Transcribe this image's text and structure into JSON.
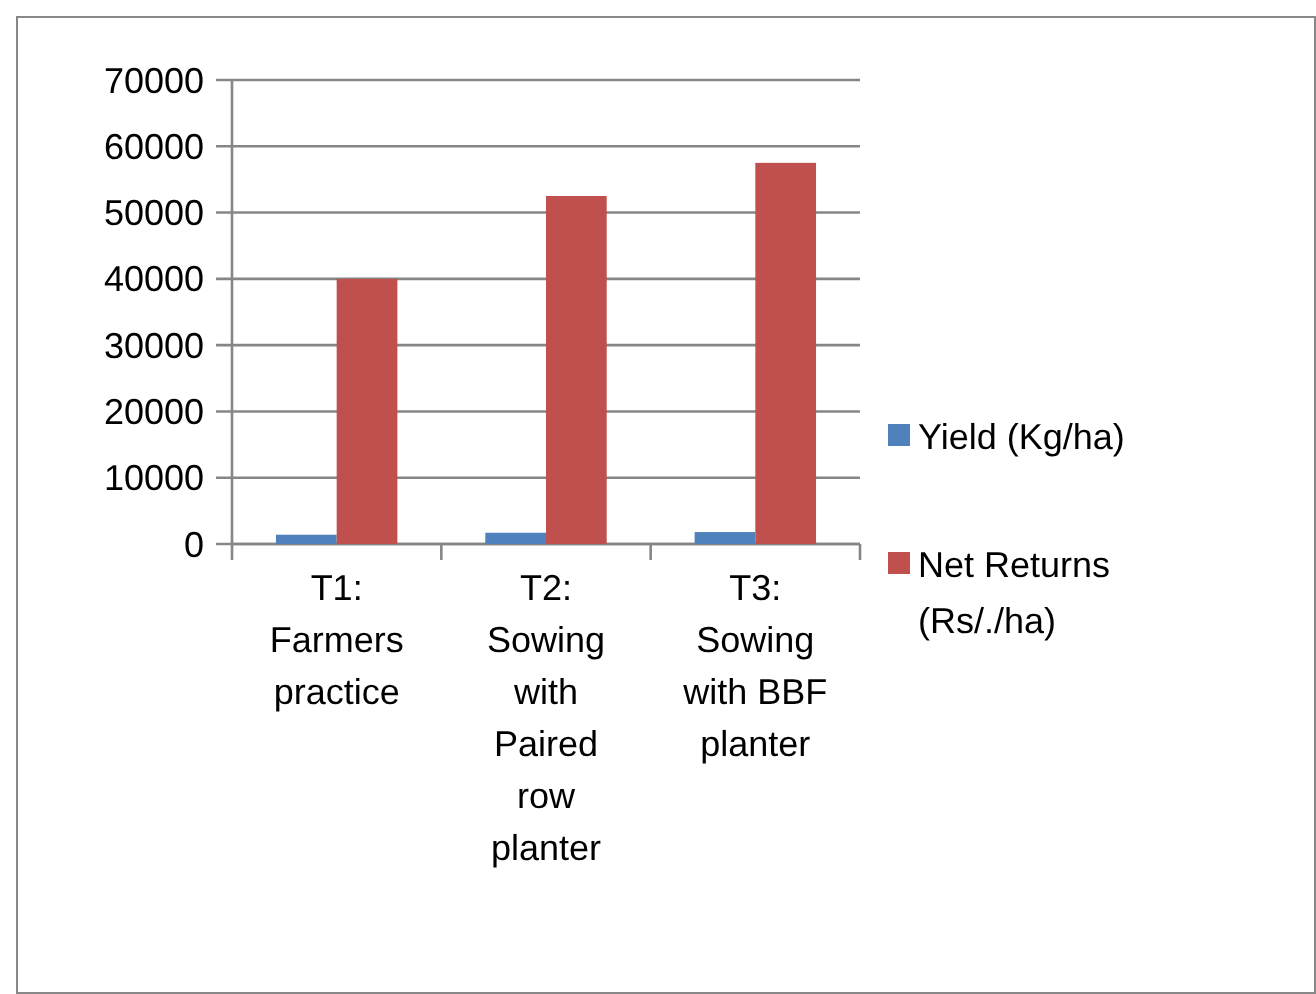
{
  "chart_data": {
    "type": "bar",
    "categories": [
      "T1: Farmers practice",
      "T2: Sowing with Paired row planter",
      "T3: Sowing with BBF planter"
    ],
    "series": [
      {
        "name": "Yield (Kg/ha)",
        "color": "#4f81bd",
        "values": [
          1400,
          1700,
          1800
        ]
      },
      {
        "name": "Net Returns (Rs/./ha)",
        "color": "#c0504d",
        "values": [
          40000,
          52500,
          57500
        ]
      }
    ],
    "ylim": [
      0,
      70000
    ],
    "yticks": [
      0,
      10000,
      20000,
      30000,
      40000,
      50000,
      60000,
      70000
    ],
    "grid": "y",
    "legend": "right"
  }
}
